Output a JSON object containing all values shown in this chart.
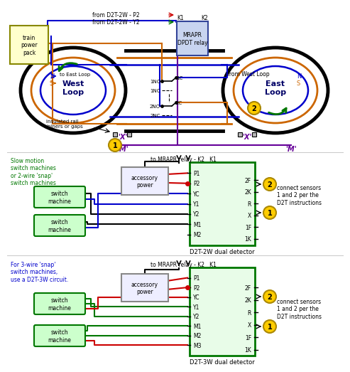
{
  "bg_color": "#ffffff",
  "rail_north_color": "#0000cc",
  "rail_south_color": "#cc6600",
  "relay_wire_color": "#660099",
  "green_wire": "#007700",
  "red_wire": "#cc0000",
  "blue_wire": "#0000cc",
  "black_wire": "#000000",
  "west_loop_label": "West\nLoop",
  "east_loop_label": "East\nLoop",
  "relay_label": "MRAPR\nDPDT relay",
  "power_pack_label": "train\npower\npack",
  "detector_2w_label": "D2T-2W dual detector",
  "detector_3w_label": "D2T-3W dual detector",
  "slow_motion_label": "Slow motion\nswitch machines\nor 2-wire 'snap'\nswitch machines",
  "three_wire_label": "For 3-wire 'snap'\nswitch machines,\nuse a D2T-3W circuit.",
  "accessory_power_label": "accessory\npower",
  "switch_machine_label": "switch\nmachine",
  "connect_sensors_label": "connect sensors\n1 and 2 per the\nD2T instructions",
  "to_mrapr_label": "to MRAPR relay - K2   K1",
  "from_d2t_p2": "from D2T-2W - P2",
  "from_d2t_y2": "from D2T-2W - Y2",
  "to_east_loop": "to East Loop",
  "from_west_loop": "from West Loop",
  "x_label": "'X'",
  "m_label": "'M'",
  "detector_pins_2w": [
    "P1",
    "P2",
    "YC",
    "Y1",
    "Y2",
    "M1",
    "M2"
  ],
  "detector_pins_3w": [
    "P1",
    "P2",
    "YC",
    "Y1",
    "Y2",
    "M1",
    "M2",
    "M3"
  ],
  "detector_right_2w": [
    "2F",
    "2K",
    "R",
    "X",
    "1F",
    "1K"
  ],
  "detector_right_3w": [
    "2F",
    "2K",
    "R",
    "X",
    "1F",
    "1K"
  ],
  "k1_label": "K1",
  "k2_label": "K2",
  "circle_color": "#ffcc00",
  "insulated_label": "insulated rail\njoiners or gaps",
  "n_label": "N",
  "s_label": "S"
}
